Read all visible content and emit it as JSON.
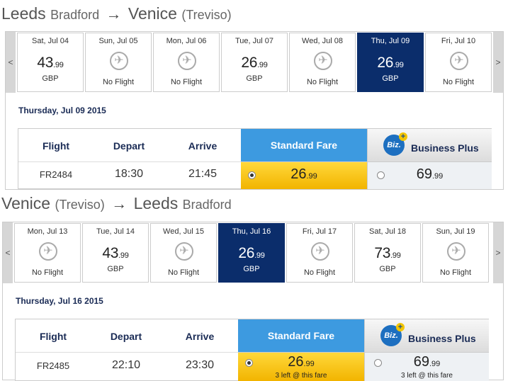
{
  "outbound": {
    "route": {
      "from_city": "Leeds",
      "from_sub": "Bradford",
      "arrow": "→",
      "to_city": "Venice",
      "to_sub": "(Treviso)"
    },
    "nav_prev": "<",
    "nav_next": ">",
    "days": [
      {
        "date": "Sat, Jul 04",
        "price_main": "43",
        "price_dec": ".99",
        "currency": "GBP",
        "no_flight": "",
        "selected": false
      },
      {
        "date": "Sun, Jul 05",
        "price_main": "",
        "price_dec": "",
        "currency": "",
        "no_flight": "No Flight",
        "selected": false
      },
      {
        "date": "Mon, Jul 06",
        "price_main": "",
        "price_dec": "",
        "currency": "",
        "no_flight": "No Flight",
        "selected": false
      },
      {
        "date": "Tue, Jul 07",
        "price_main": "26",
        "price_dec": ".99",
        "currency": "GBP",
        "no_flight": "",
        "selected": false
      },
      {
        "date": "Wed, Jul 08",
        "price_main": "",
        "price_dec": "",
        "currency": "",
        "no_flight": "No Flight",
        "selected": false
      },
      {
        "date": "Thu, Jul 09",
        "price_main": "26",
        "price_dec": ".99",
        "currency": "GBP",
        "no_flight": "",
        "selected": true
      },
      {
        "date": "Fri, Jul 10",
        "price_main": "",
        "price_dec": "",
        "currency": "",
        "no_flight": "No Flight",
        "selected": false
      }
    ],
    "date_heading": "Thursday, Jul 09 2015",
    "table": {
      "col_flight": "Flight",
      "col_depart": "Depart",
      "col_arrive": "Arrive",
      "standard_fare": "Standard Fare",
      "biz_logo": "Biz.",
      "biz_plus_sign": "+",
      "business_plus": "Business Plus",
      "flight_no": "FR2484",
      "depart": "18:30",
      "arrive": "21:45",
      "std_main": "26",
      "std_dec": ".99",
      "std_note": "",
      "biz_main": "69",
      "biz_dec": ".99",
      "biz_note": ""
    }
  },
  "inbound": {
    "route": {
      "from_city": "Venice",
      "from_sub": "(Treviso)",
      "arrow": "→",
      "to_city": "Leeds",
      "to_sub": "Bradford"
    },
    "nav_prev": "<",
    "nav_next": ">",
    "days": [
      {
        "date": "Mon, Jul 13",
        "price_main": "",
        "price_dec": "",
        "currency": "",
        "no_flight": "No Flight",
        "selected": false
      },
      {
        "date": "Tue, Jul 14",
        "price_main": "43",
        "price_dec": ".99",
        "currency": "GBP",
        "no_flight": "",
        "selected": false
      },
      {
        "date": "Wed, Jul 15",
        "price_main": "",
        "price_dec": "",
        "currency": "",
        "no_flight": "No Flight",
        "selected": false
      },
      {
        "date": "Thu, Jul 16",
        "price_main": "26",
        "price_dec": ".99",
        "currency": "GBP",
        "no_flight": "",
        "selected": true
      },
      {
        "date": "Fri, Jul 17",
        "price_main": "",
        "price_dec": "",
        "currency": "",
        "no_flight": "No Flight",
        "selected": false
      },
      {
        "date": "Sat, Jul 18",
        "price_main": "73",
        "price_dec": ".99",
        "currency": "GBP",
        "no_flight": "",
        "selected": false
      },
      {
        "date": "Sun, Jul 19",
        "price_main": "",
        "price_dec": "",
        "currency": "",
        "no_flight": "No Flight",
        "selected": false
      }
    ],
    "date_heading": "Thursday, Jul 16 2015",
    "table": {
      "col_flight": "Flight",
      "col_depart": "Depart",
      "col_arrive": "Arrive",
      "standard_fare": "Standard Fare",
      "biz_logo": "Biz.",
      "biz_plus_sign": "+",
      "business_plus": "Business Plus",
      "flight_no": "FR2485",
      "depart": "22:10",
      "arrive": "23:30",
      "std_main": "26",
      "std_dec": ".99",
      "std_note": "3 left @ this fare",
      "biz_main": "69",
      "biz_dec": ".99",
      "biz_note": "3 left @ this fare"
    }
  },
  "icons": {
    "no_flight": "airplane-icon",
    "radio": "radio-icon",
    "prev": "chevron-left-icon",
    "next": "chevron-right-icon"
  },
  "colors": {
    "selected_day": "#0b2d6b",
    "standard_fare_header": "#3d9ae0",
    "standard_fare_cell": "#f2b400",
    "biz_logo": "#1d6fc0"
  }
}
